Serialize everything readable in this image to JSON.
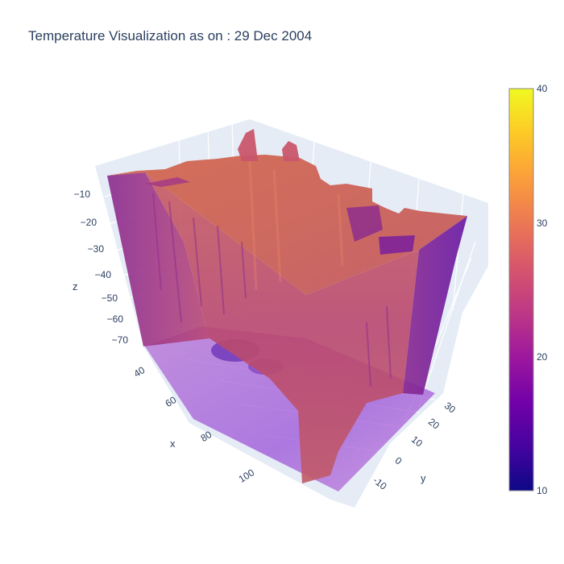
{
  "chart_data": {
    "type": "volume",
    "title": "Temperature Visualization as on : 29 Dec 2004",
    "axes": {
      "x": {
        "label": "x",
        "ticks": [
          "40",
          "60",
          "80",
          "100"
        ]
      },
      "y": {
        "label": "y",
        "ticks": [
          "-10",
          "0",
          "10",
          "20",
          "30"
        ]
      },
      "z": {
        "label": "z",
        "ticks": [
          "−10",
          "−20",
          "−30",
          "−40",
          "−50",
          "−60",
          "−70"
        ]
      }
    },
    "colorbar": {
      "ticks": [
        "10",
        "20",
        "30",
        "40"
      ],
      "range": [
        10,
        40
      ],
      "colorscale": [
        "#0d0887",
        "#46039f",
        "#7201a8",
        "#9c179e",
        "#bd3786",
        "#d8576b",
        "#ed7953",
        "#fb9f3a",
        "#fdca26",
        "#f0f921"
      ]
    },
    "scene_colors": {
      "background": "#e5ecf6",
      "grid": "#ffffff",
      "text": "#2a3f5f"
    }
  }
}
